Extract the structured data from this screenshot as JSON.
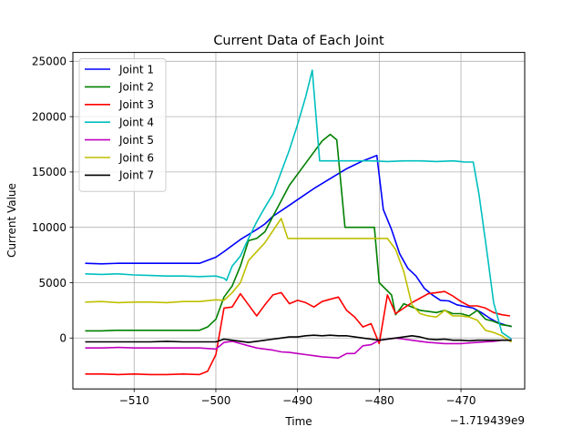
{
  "chart_data": {
    "type": "line",
    "title": "Current Data of Each Joint",
    "xlabel": "Time",
    "ylabel": "Current Value",
    "x_offset_label": "−1.719439e9",
    "xlim": [
      -517.5,
      -462.2
    ],
    "ylim": [
      -4600,
      25800
    ],
    "x_ticks": [
      -510,
      -500,
      -490,
      -480,
      -470
    ],
    "x_tick_labels": [
      "−510",
      "−500",
      "−490",
      "−480",
      "−470"
    ],
    "y_ticks": [
      0,
      5000,
      10000,
      15000,
      20000,
      25000
    ],
    "y_tick_labels": [
      "0",
      "5000",
      "10000",
      "15000",
      "20000",
      "25000"
    ],
    "grid": true,
    "legend_position": "top-left",
    "series": [
      {
        "name": "Joint 1",
        "color": "#0000ff",
        "points": [
          [
            -516,
            6750
          ],
          [
            -514,
            6700
          ],
          [
            -512,
            6750
          ],
          [
            -510,
            6750
          ],
          [
            -508,
            6750
          ],
          [
            -506,
            6750
          ],
          [
            -504,
            6750
          ],
          [
            -502,
            6750
          ],
          [
            -500,
            7300
          ],
          [
            -499,
            7800
          ],
          [
            -497,
            8900
          ],
          [
            -495,
            9800
          ],
          [
            -494,
            10300
          ],
          [
            -493,
            11000
          ],
          [
            -491,
            12000
          ],
          [
            -489,
            13000
          ],
          [
            -488,
            13500
          ],
          [
            -486,
            14400
          ],
          [
            -484,
            15300
          ],
          [
            -482,
            16000
          ],
          [
            -480.3,
            16500
          ],
          [
            -479.5,
            11600
          ],
          [
            -478.5,
            9800
          ],
          [
            -477.5,
            7600
          ],
          [
            -476.5,
            6300
          ],
          [
            -475.5,
            5600
          ],
          [
            -474.5,
            4500
          ],
          [
            -473.5,
            3900
          ],
          [
            -472.5,
            3400
          ],
          [
            -471.5,
            3350
          ],
          [
            -470.5,
            3000
          ],
          [
            -469.5,
            2850
          ],
          [
            -468.5,
            2700
          ],
          [
            -467.5,
            2300
          ],
          [
            -466.5,
            1800
          ],
          [
            -465.5,
            1400
          ],
          [
            -464.5,
            1150
          ],
          [
            -463.8,
            1050
          ]
        ]
      },
      {
        "name": "Joint 2",
        "color": "#008000",
        "points": [
          [
            -516,
            650
          ],
          [
            -514,
            650
          ],
          [
            -512,
            700
          ],
          [
            -510,
            700
          ],
          [
            -508,
            700
          ],
          [
            -506,
            700
          ],
          [
            -504,
            700
          ],
          [
            -502,
            700
          ],
          [
            -501,
            1000
          ],
          [
            -500,
            1700
          ],
          [
            -499,
            3700
          ],
          [
            -498,
            4700
          ],
          [
            -497,
            6500
          ],
          [
            -496,
            8800
          ],
          [
            -495,
            9000
          ],
          [
            -494,
            9600
          ],
          [
            -493,
            11000
          ],
          [
            -492,
            12400
          ],
          [
            -491,
            13800
          ],
          [
            -489,
            15800
          ],
          [
            -487,
            17800
          ],
          [
            -486,
            18400
          ],
          [
            -485.2,
            17900
          ],
          [
            -484.2,
            10000
          ],
          [
            -482,
            10000
          ],
          [
            -480.6,
            10000
          ],
          [
            -480,
            5000
          ],
          [
            -478.5,
            3900
          ],
          [
            -478,
            2100
          ],
          [
            -477,
            3100
          ],
          [
            -476,
            2800
          ],
          [
            -475,
            2500
          ],
          [
            -474,
            2400
          ],
          [
            -473,
            2300
          ],
          [
            -472,
            2500
          ],
          [
            -471,
            2200
          ],
          [
            -470,
            2200
          ],
          [
            -469,
            2000
          ],
          [
            -468,
            2500
          ],
          [
            -467,
            1700
          ],
          [
            -466,
            1500
          ],
          [
            -465,
            1200
          ],
          [
            -464,
            1100
          ],
          [
            -463.8,
            1000
          ]
        ]
      },
      {
        "name": "Joint 3",
        "color": "#ff0000",
        "points": [
          [
            -516,
            -3250
          ],
          [
            -514,
            -3250
          ],
          [
            -512,
            -3300
          ],
          [
            -510,
            -3250
          ],
          [
            -508,
            -3300
          ],
          [
            -506,
            -3300
          ],
          [
            -504,
            -3250
          ],
          [
            -502,
            -3300
          ],
          [
            -501,
            -3000
          ],
          [
            -500,
            -1500
          ],
          [
            -499,
            2700
          ],
          [
            -498,
            2800
          ],
          [
            -497,
            4000
          ],
          [
            -496,
            3000
          ],
          [
            -495,
            2000
          ],
          [
            -494,
            3000
          ],
          [
            -493,
            3900
          ],
          [
            -492,
            4100
          ],
          [
            -491,
            3100
          ],
          [
            -490,
            3400
          ],
          [
            -489,
            3200
          ],
          [
            -488,
            2800
          ],
          [
            -487,
            3300
          ],
          [
            -486,
            3500
          ],
          [
            -485,
            3700
          ],
          [
            -484,
            2500
          ],
          [
            -483,
            1900
          ],
          [
            -482,
            1000
          ],
          [
            -481,
            1300
          ],
          [
            -480,
            -500
          ],
          [
            -479,
            3900
          ],
          [
            -478,
            2200
          ],
          [
            -477,
            2700
          ],
          [
            -476,
            3200
          ],
          [
            -475,
            3600
          ],
          [
            -474,
            4000
          ],
          [
            -473,
            4100
          ],
          [
            -472,
            4200
          ],
          [
            -471,
            3800
          ],
          [
            -470,
            3300
          ],
          [
            -469,
            2900
          ],
          [
            -468,
            2900
          ],
          [
            -467,
            2700
          ],
          [
            -466,
            2300
          ],
          [
            -465,
            2100
          ],
          [
            -464,
            2000
          ]
        ]
      },
      {
        "name": "Joint 4",
        "color": "#00bfbf",
        "points": [
          [
            -516,
            5800
          ],
          [
            -514,
            5750
          ],
          [
            -512,
            5800
          ],
          [
            -510,
            5700
          ],
          [
            -508,
            5650
          ],
          [
            -506,
            5600
          ],
          [
            -504,
            5600
          ],
          [
            -502,
            5550
          ],
          [
            -500,
            5600
          ],
          [
            -499,
            5400
          ],
          [
            -498.7,
            5200
          ],
          [
            -498,
            6500
          ],
          [
            -497,
            7400
          ],
          [
            -496,
            9000
          ],
          [
            -495,
            10500
          ],
          [
            -494,
            11800
          ],
          [
            -493,
            13000
          ],
          [
            -492,
            15000
          ],
          [
            -491,
            17000
          ],
          [
            -490,
            19300
          ],
          [
            -489,
            21800
          ],
          [
            -488.2,
            24200
          ],
          [
            -487.3,
            16000
          ],
          [
            -485,
            16000
          ],
          [
            -483,
            16000
          ],
          [
            -481,
            16000
          ],
          [
            -479,
            15950
          ],
          [
            -477,
            16000
          ],
          [
            -475,
            16000
          ],
          [
            -473,
            15950
          ],
          [
            -471,
            16000
          ],
          [
            -469.5,
            15900
          ],
          [
            -468.5,
            15900
          ],
          [
            -467.8,
            13000
          ],
          [
            -466.8,
            7700
          ],
          [
            -466,
            3200
          ],
          [
            -465,
            500
          ],
          [
            -464,
            0
          ],
          [
            -463.8,
            -100
          ]
        ]
      },
      {
        "name": "Joint 5",
        "color": "#bf00bf",
        "points": [
          [
            -516,
            -900
          ],
          [
            -514,
            -900
          ],
          [
            -512,
            -850
          ],
          [
            -510,
            -900
          ],
          [
            -508,
            -900
          ],
          [
            -506,
            -900
          ],
          [
            -504,
            -900
          ],
          [
            -502,
            -900
          ],
          [
            -500,
            -1000
          ],
          [
            -499,
            -400
          ],
          [
            -498,
            -300
          ],
          [
            -497,
            -500
          ],
          [
            -496,
            -700
          ],
          [
            -495,
            -900
          ],
          [
            -494,
            -1000
          ],
          [
            -493,
            -1100
          ],
          [
            -492,
            -1250
          ],
          [
            -491,
            -1300
          ],
          [
            -490,
            -1400
          ],
          [
            -489,
            -1500
          ],
          [
            -488,
            -1600
          ],
          [
            -487,
            -1700
          ],
          [
            -486,
            -1750
          ],
          [
            -485,
            -1800
          ],
          [
            -484,
            -1400
          ],
          [
            -483,
            -1400
          ],
          [
            -482,
            -700
          ],
          [
            -481,
            -600
          ],
          [
            -480,
            -200
          ],
          [
            -479,
            -100
          ],
          [
            -478,
            0
          ],
          [
            -477,
            -100
          ],
          [
            -476,
            -200
          ],
          [
            -475,
            -300
          ],
          [
            -474,
            -400
          ],
          [
            -473,
            -450
          ],
          [
            -472,
            -500
          ],
          [
            -471,
            -500
          ],
          [
            -470,
            -500
          ],
          [
            -469,
            -450
          ],
          [
            -468,
            -400
          ],
          [
            -467,
            -350
          ],
          [
            -466,
            -300
          ],
          [
            -465,
            -200
          ],
          [
            -464,
            -200
          ],
          [
            -463.8,
            -200
          ]
        ]
      },
      {
        "name": "Joint 6",
        "color": "#bfbf00",
        "points": [
          [
            -516,
            3250
          ],
          [
            -514,
            3300
          ],
          [
            -512,
            3200
          ],
          [
            -510,
            3250
          ],
          [
            -508,
            3250
          ],
          [
            -506,
            3200
          ],
          [
            -504,
            3300
          ],
          [
            -502,
            3300
          ],
          [
            -500,
            3450
          ],
          [
            -499,
            3400
          ],
          [
            -498,
            4100
          ],
          [
            -497,
            5000
          ],
          [
            -496,
            7000
          ],
          [
            -495,
            7800
          ],
          [
            -494,
            8600
          ],
          [
            -493,
            9700
          ],
          [
            -492,
            10800
          ],
          [
            -491.2,
            9000
          ],
          [
            -489,
            9000
          ],
          [
            -487,
            9000
          ],
          [
            -485,
            9000
          ],
          [
            -483,
            9000
          ],
          [
            -481,
            9000
          ],
          [
            -479,
            9000
          ],
          [
            -478,
            8000
          ],
          [
            -477,
            6000
          ],
          [
            -476,
            3000
          ],
          [
            -475,
            2200
          ],
          [
            -474,
            2000
          ],
          [
            -473,
            1900
          ],
          [
            -472,
            2500
          ],
          [
            -471,
            2000
          ],
          [
            -470,
            2000
          ],
          [
            -469,
            1900
          ],
          [
            -468,
            1600
          ],
          [
            -467,
            700
          ],
          [
            -466,
            500
          ],
          [
            -465,
            200
          ],
          [
            -464,
            -300
          ],
          [
            -463.8,
            -350
          ]
        ]
      },
      {
        "name": "Joint 7",
        "color": "#000000",
        "points": [
          [
            -516,
            -350
          ],
          [
            -514,
            -350
          ],
          [
            -512,
            -350
          ],
          [
            -510,
            -350
          ],
          [
            -508,
            -350
          ],
          [
            -506,
            -300
          ],
          [
            -504,
            -350
          ],
          [
            -502,
            -350
          ],
          [
            -500,
            -350
          ],
          [
            -499,
            -100
          ],
          [
            -498,
            -200
          ],
          [
            -497,
            -300
          ],
          [
            -496,
            -400
          ],
          [
            -495,
            -300
          ],
          [
            -494,
            -200
          ],
          [
            -493,
            -100
          ],
          [
            -492,
            0
          ],
          [
            -491,
            100
          ],
          [
            -490,
            100
          ],
          [
            -489,
            200
          ],
          [
            -488,
            250
          ],
          [
            -487,
            200
          ],
          [
            -486,
            250
          ],
          [
            -485,
            200
          ],
          [
            -484,
            200
          ],
          [
            -483,
            100
          ],
          [
            -482,
            0
          ],
          [
            -481,
            -100
          ],
          [
            -480,
            -200
          ],
          [
            -479,
            -100
          ],
          [
            -478,
            0
          ],
          [
            -477,
            100
          ],
          [
            -476,
            200
          ],
          [
            -475,
            100
          ],
          [
            -474,
            -100
          ],
          [
            -473,
            -150
          ],
          [
            -472,
            -100
          ],
          [
            -471,
            -200
          ],
          [
            -470,
            -200
          ],
          [
            -469,
            -250
          ],
          [
            -468,
            -200
          ],
          [
            -467,
            -200
          ],
          [
            -466,
            -200
          ],
          [
            -465,
            -200
          ],
          [
            -464,
            -200
          ],
          [
            -463.8,
            -200
          ]
        ]
      }
    ]
  }
}
